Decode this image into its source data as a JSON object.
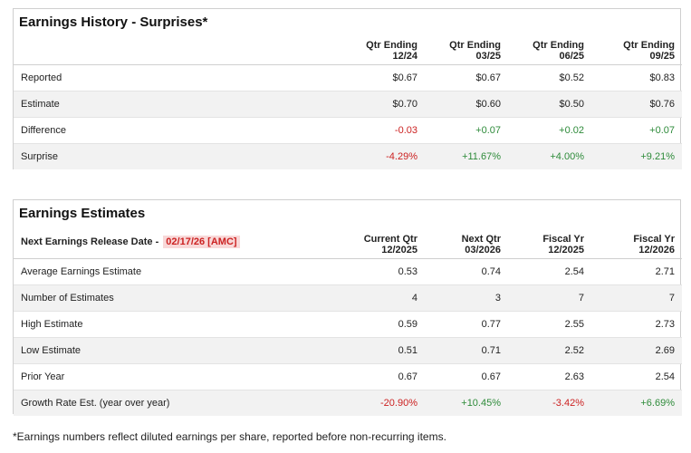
{
  "history": {
    "title": "Earnings History - Surprises*",
    "columns": [
      {
        "line1": "Qtr Ending",
        "line2": "12/24"
      },
      {
        "line1": "Qtr Ending",
        "line2": "03/25"
      },
      {
        "line1": "Qtr Ending",
        "line2": "06/25"
      },
      {
        "line1": "Qtr Ending",
        "line2": "09/25"
      }
    ],
    "rows": [
      {
        "label": "Reported",
        "values": [
          "$0.67",
          "$0.67",
          "$0.52",
          "$0.83"
        ]
      },
      {
        "label": "Estimate",
        "values": [
          "$0.70",
          "$0.60",
          "$0.50",
          "$0.76"
        ]
      },
      {
        "label": "Difference",
        "values": [
          "-0.03",
          "+0.07",
          "+0.02",
          "+0.07"
        ]
      },
      {
        "label": "Surprise",
        "values": [
          "-4.29%",
          "+11.67%",
          "+4.00%",
          "+9.21%"
        ]
      }
    ]
  },
  "estimates": {
    "title": "Earnings Estimates",
    "release_label": "Next Earnings Release Date -",
    "release_date": "02/17/26 [AMC]",
    "columns": [
      {
        "line1": "Current Qtr",
        "line2": "12/2025"
      },
      {
        "line1": "Next Qtr",
        "line2": "03/2026"
      },
      {
        "line1": "Fiscal Yr",
        "line2": "12/2025"
      },
      {
        "line1": "Fiscal Yr",
        "line2": "12/2026"
      }
    ],
    "rows": [
      {
        "label": "Average Earnings Estimate",
        "values": [
          "0.53",
          "0.74",
          "2.54",
          "2.71"
        ]
      },
      {
        "label": "Number of Estimates",
        "values": [
          "4",
          "3",
          "7",
          "7"
        ]
      },
      {
        "label": "High Estimate",
        "values": [
          "0.59",
          "0.77",
          "2.55",
          "2.73"
        ]
      },
      {
        "label": "Low Estimate",
        "values": [
          "0.51",
          "0.71",
          "2.52",
          "2.69"
        ]
      },
      {
        "label": "Prior Year",
        "values": [
          "0.67",
          "0.67",
          "2.63",
          "2.54"
        ]
      },
      {
        "label": "Growth Rate Est. (year over year)",
        "values": [
          "-20.90%",
          "+10.45%",
          "-3.42%",
          "+6.69%"
        ]
      }
    ]
  },
  "colors": {
    "negative": "#cc2222",
    "positive": "#2e8b3a"
  },
  "footnote": "*Earnings numbers reflect diluted earnings per share, reported before non-recurring items."
}
